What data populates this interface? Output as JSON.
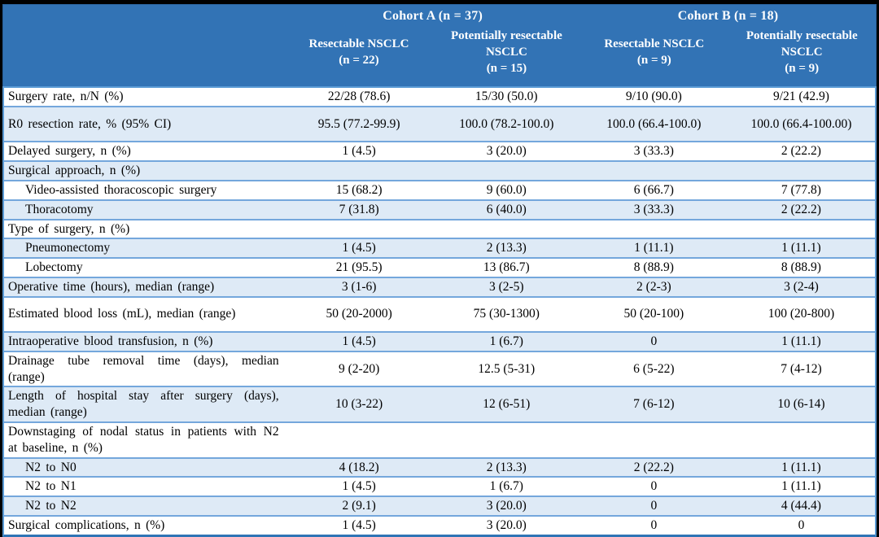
{
  "table": {
    "header": {
      "cohorts": [
        {
          "label": "Cohort A (n = 37)",
          "subcolumns": [
            "Resectable NSCLC (n = 22)",
            "Potentially resectable NSCLC (n = 15)"
          ]
        },
        {
          "label": "Cohort B (n = 18)",
          "subcolumns": [
            "Resectable NSCLC (n = 9)",
            "Potentially resectable NSCLC (n = 9)"
          ]
        }
      ]
    },
    "rows": [
      {
        "label": "Surgery rate, n/N (%)",
        "indent": false,
        "tall": false,
        "values": [
          "22/28 (78.6)",
          "15/30 (50.0)",
          "9/10 (90.0)",
          "9/21 (42.9)"
        ]
      },
      {
        "label": "R0 resection rate, % (95% CI)",
        "indent": false,
        "tall": true,
        "values": [
          "95.5 (77.2-99.9)",
          "100.0 (78.2-100.0)",
          "100.0 (66.4-100.0)",
          "100.0 (66.4-100.00)"
        ]
      },
      {
        "label": "Delayed surgery, n (%)",
        "indent": false,
        "tall": false,
        "values": [
          "1 (4.5)",
          "3 (20.0)",
          "3 (33.3)",
          "2 (22.2)"
        ]
      },
      {
        "label": "Surgical approach, n (%)",
        "indent": false,
        "tall": false,
        "values": [
          "",
          "",
          "",
          ""
        ]
      },
      {
        "label": "Video-assisted thoracoscopic surgery",
        "indent": true,
        "tall": false,
        "values": [
          "15 (68.2)",
          "9 (60.0)",
          "6 (66.7)",
          "7 (77.8)"
        ]
      },
      {
        "label": "Thoracotomy",
        "indent": true,
        "tall": false,
        "values": [
          "7 (31.8)",
          "6 (40.0)",
          "3 (33.3)",
          "2 (22.2)"
        ]
      },
      {
        "label": "Type of surgery, n (%)",
        "indent": false,
        "tall": false,
        "values": [
          "",
          "",
          "",
          ""
        ]
      },
      {
        "label": "Pneumonectomy",
        "indent": true,
        "tall": false,
        "values": [
          "1 (4.5)",
          "2 (13.3)",
          "1 (11.1)",
          "1 (11.1)"
        ]
      },
      {
        "label": "Lobectomy",
        "indent": true,
        "tall": false,
        "values": [
          "21 (95.5)",
          "13 (86.7)",
          "8 (88.9)",
          "8 (88.9)"
        ]
      },
      {
        "label": "Operative time (hours), median (range)",
        "indent": false,
        "tall": false,
        "values": [
          "3 (1-6)",
          "3 (2-5)",
          "2 (2-3)",
          "3 (2-4)"
        ]
      },
      {
        "label": "Estimated blood loss (mL), median (range)",
        "indent": false,
        "tall": true,
        "values": [
          "50 (20-2000)",
          "75 (30-1300)",
          "50 (20-100)",
          "100 (20-800)"
        ]
      },
      {
        "label": "Intraoperative blood transfusion, n (%)",
        "indent": false,
        "tall": false,
        "values": [
          "1 (4.5)",
          "1 (6.7)",
          "0",
          "1 (11.1)"
        ]
      },
      {
        "label": "Drainage tube removal time (days), median (range)",
        "indent": false,
        "tall": true,
        "values": [
          "9 (2-20)",
          "12.5 (5-31)",
          "6 (5-22)",
          "7 (4-12)"
        ]
      },
      {
        "label": "Length of hospital stay after surgery (days), median (range)",
        "indent": false,
        "tall": true,
        "values": [
          "10 (3-22)",
          "12 (6-51)",
          "7 (6-12)",
          "10 (6-14)"
        ]
      },
      {
        "label": "Downstaging of nodal status in patients with N2 at baseline, n (%)",
        "indent": false,
        "tall": true,
        "values": [
          "",
          "",
          "",
          ""
        ]
      },
      {
        "label": "N2 to N0",
        "indent": true,
        "tall": false,
        "values": [
          "4 (18.2)",
          "2 (13.3)",
          "2 (22.2)",
          "1 (11.1)"
        ]
      },
      {
        "label": "N2 to N1",
        "indent": true,
        "tall": false,
        "values": [
          "1 (4.5)",
          "1 (6.7)",
          "0",
          "1 (11.1)"
        ]
      },
      {
        "label": "N2 to N2",
        "indent": true,
        "tall": false,
        "values": [
          "2 (9.1)",
          "3 (20.0)",
          "0",
          "4 (44.4)"
        ]
      },
      {
        "label": "Surgical complications, n (%)",
        "indent": false,
        "tall": false,
        "values": [
          "1 (4.5)",
          "3 (20.0)",
          "0",
          "0"
        ]
      }
    ],
    "colors": {
      "header_bg": "#3273b5",
      "header_text": "#ffffff",
      "zebra_bg": "#deeaf6",
      "row_border": "#74a7dc",
      "outer_border": "#5b9bd5",
      "bottom_border": "#2e74b5",
      "page_edge": "#000000"
    }
  }
}
